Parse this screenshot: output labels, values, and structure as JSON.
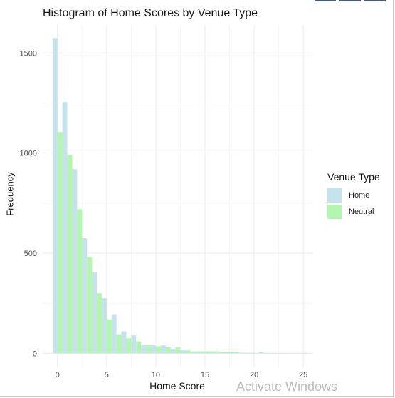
{
  "chart_data": {
    "type": "bar",
    "title": "Histogram of Home Scores by Venue Type",
    "xlabel": "Home Score",
    "ylabel": "Frequency",
    "xlim": [
      -1.5,
      26
    ],
    "ylim": [
      -70,
      1640
    ],
    "x_ticks": [
      0,
      5,
      10,
      15,
      20,
      25
    ],
    "y_ticks": [
      0,
      500,
      1000,
      1500
    ],
    "grid": true,
    "legend": {
      "title": "Venue Type",
      "position": "right"
    },
    "x": [
      0,
      1,
      2,
      3,
      4,
      5,
      6,
      7,
      8,
      9,
      10,
      11,
      12,
      13,
      14,
      15,
      16,
      17,
      18,
      19,
      20,
      21,
      22,
      23,
      24,
      25
    ],
    "series": [
      {
        "name": "Home",
        "color": "#c6e3ec",
        "values": [
          1575,
          1255,
          920,
          575,
          405,
          275,
          195,
          110,
          90,
          40,
          40,
          40,
          20,
          15,
          10,
          10,
          10,
          5,
          5,
          3,
          3,
          5,
          2,
          1,
          1,
          1
        ]
      },
      {
        "name": "Neutral",
        "color": "#b3f5b1",
        "values": [
          1105,
          990,
          720,
          480,
          300,
          170,
          95,
          75,
          60,
          40,
          35,
          30,
          30,
          15,
          10,
          10,
          10,
          5,
          5,
          3,
          2,
          2,
          1,
          1,
          1,
          1
        ]
      }
    ]
  },
  "watermark": "Activate Windows"
}
